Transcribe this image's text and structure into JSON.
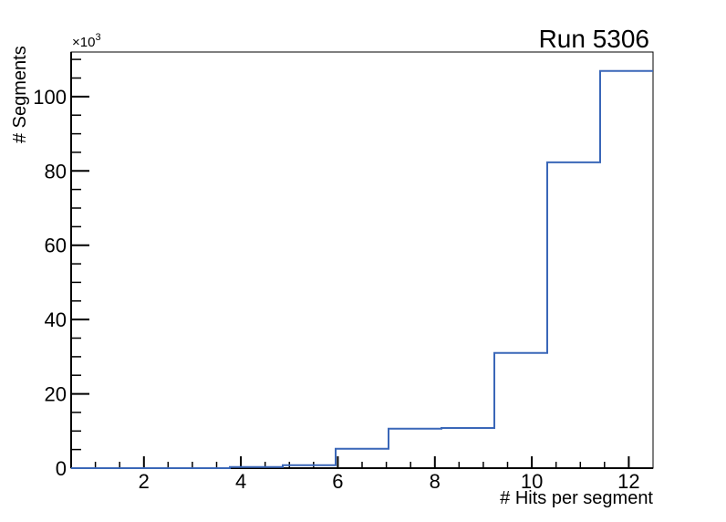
{
  "chart_data": {
    "type": "histogram",
    "title": "Run 5306",
    "xlabel": "# Hits per segment",
    "ylabel": "# Segments",
    "y_scale_prefix": "×10",
    "y_scale_exponent": "3",
    "xlim": [
      0.5,
      12.5
    ],
    "ylim": [
      0,
      112000
    ],
    "bin_edges": [
      0.5,
      1.5909,
      2.6818,
      3.7727,
      4.8636,
      5.9545,
      7.0455,
      8.1364,
      9.2273,
      10.3182,
      11.4091,
      12.5
    ],
    "counts": [
      0,
      0,
      0,
      300,
      800,
      5200,
      10600,
      10800,
      31000,
      82300,
      106900
    ],
    "x_major_ticks": [
      2,
      4,
      6,
      8,
      10,
      12
    ],
    "x_minor_tick_step": 0.5,
    "y_major_ticks": [
      0,
      20000,
      40000,
      60000,
      80000,
      100000
    ],
    "y_major_tick_labels": [
      "0",
      "20",
      "40",
      "60",
      "80",
      "100"
    ],
    "y_minor_tick_step": 5000,
    "grid": "off",
    "legend_position": "none",
    "line_color": "#3a67b8",
    "frame_color": "#000000",
    "background_color": "#ffffff"
  }
}
